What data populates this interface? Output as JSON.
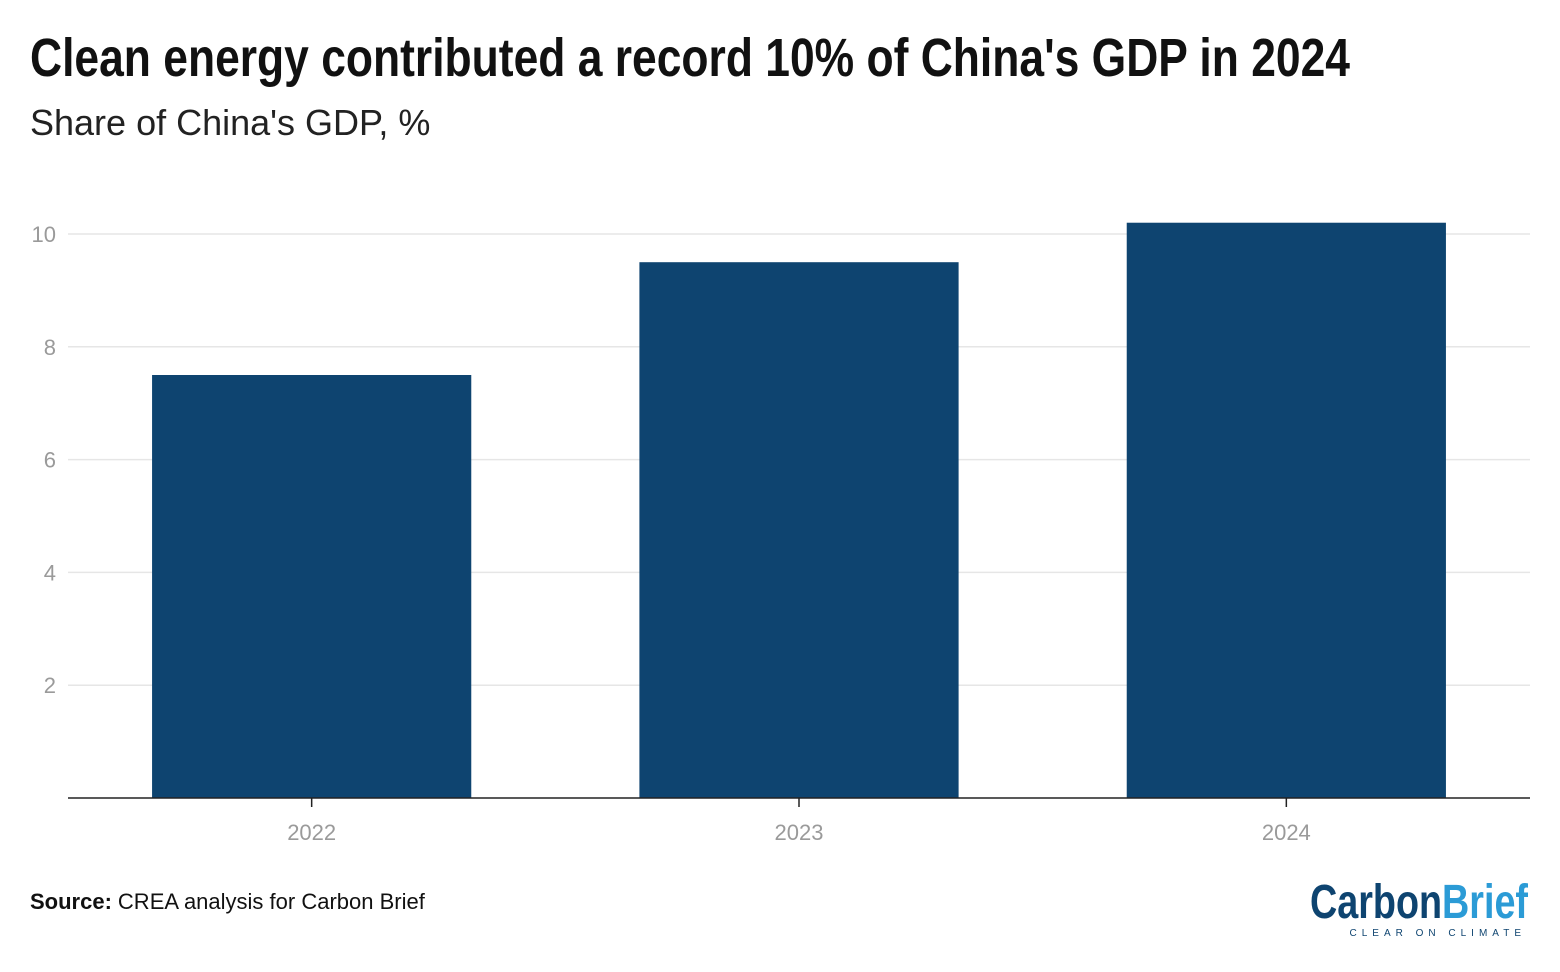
{
  "chart_data": {
    "type": "bar",
    "title": "Clean energy contributed a record 10% of China's GDP in 2024",
    "subtitle": "Share of China's GDP, %",
    "categories": [
      "2022",
      "2023",
      "2024"
    ],
    "values": [
      7.5,
      9.5,
      10.2
    ],
    "color": "#0e4470",
    "ylim": [
      0,
      10.5
    ],
    "yticks": [
      2,
      4,
      6,
      8,
      10
    ],
    "grid": true
  },
  "footer": {
    "source_label": "Source:",
    "source": "CREA analysis for Carbon Brief",
    "logo": [
      "Carbon",
      "Brief"
    ],
    "tagline": "CLEAR ON CLIMATE"
  }
}
